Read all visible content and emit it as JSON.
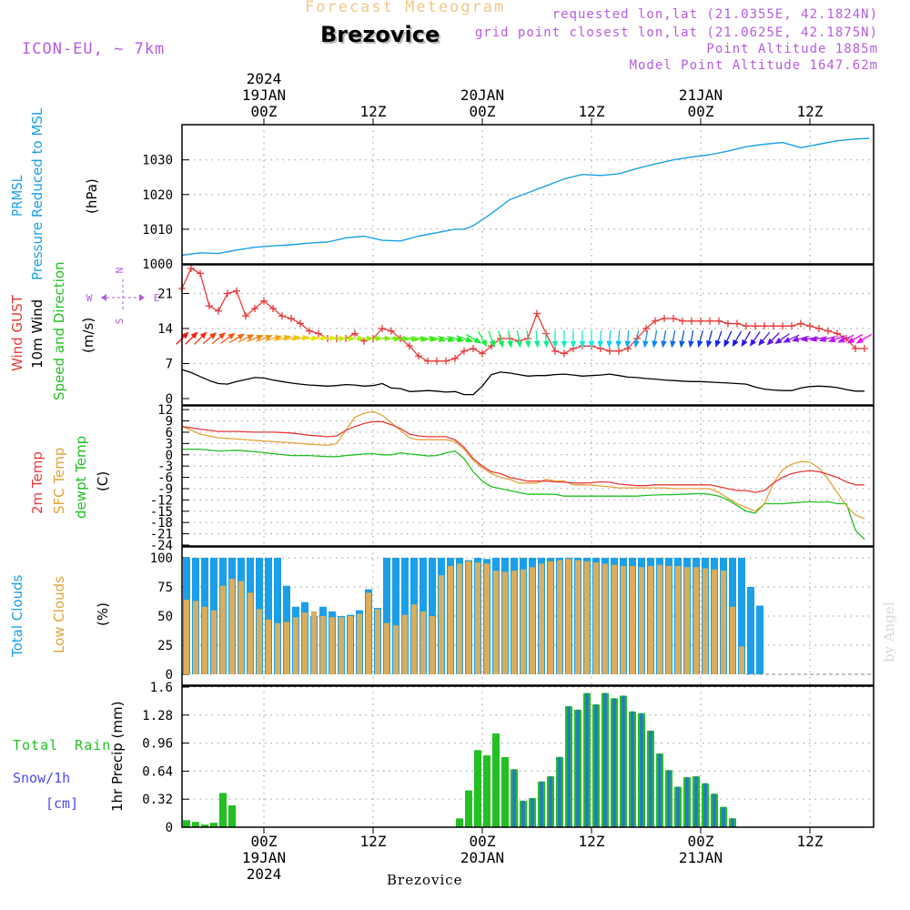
{
  "header": {
    "product": "Forecast Meteogram",
    "location": "Brezovice",
    "model": "ICON-EU, ~ 7km",
    "requested": "requested lon,lat (21.0355E, 42.1824N)",
    "gridpoint": "grid point closest lon,lat (21.0625E, 42.1875N)",
    "point_altitude": "Point Altitude 1885m",
    "model_altitude": "Model Point Altitude 1647.62m",
    "credit": "by Angel",
    "footer_location": "Brezovice"
  },
  "colors": {
    "blue": "#1a9fe8",
    "red": "#e83a3a",
    "orange": "#e0a43a",
    "green": "#22c022",
    "black": "#000000",
    "purple": "#b45ce0",
    "snow": "#4a4af0"
  },
  "chart_data": {
    "type": "meteogram",
    "x_unit": "hours since 2024-01-18 15Z",
    "time_axis": {
      "top_ticks": [
        {
          "t": 9,
          "lines": [
            "2024",
            "19JAN",
            "00Z"
          ]
        },
        {
          "t": 21,
          "lines": [
            "12Z"
          ]
        },
        {
          "t": 33,
          "lines": [
            "20JAN",
            "00Z"
          ]
        },
        {
          "t": 45,
          "lines": [
            "12Z"
          ]
        },
        {
          "t": 57,
          "lines": [
            "21JAN",
            "00Z"
          ]
        },
        {
          "t": 69,
          "lines": [
            "12Z"
          ]
        }
      ],
      "bottom_ticks": [
        {
          "t": 9,
          "lines": [
            "00Z",
            "19JAN",
            "2024"
          ]
        },
        {
          "t": 21,
          "lines": [
            "12Z"
          ]
        },
        {
          "t": 33,
          "lines": [
            "00Z",
            "20JAN"
          ]
        },
        {
          "t": 45,
          "lines": [
            "12Z"
          ]
        },
        {
          "t": 57,
          "lines": [
            "00Z",
            "21JAN"
          ]
        },
        {
          "t": 69,
          "lines": [
            "12Z"
          ]
        }
      ],
      "range": [
        0,
        76
      ]
    },
    "pressure": {
      "labels": [
        "PRMSL",
        "Pressure Reduced to MSL",
        "(hPa)"
      ],
      "ylim": [
        1000,
        1037
      ],
      "yticks": [
        1000,
        1010,
        1020,
        1030
      ],
      "t": [
        0,
        2,
        4,
        6,
        8,
        10,
        12,
        14,
        16,
        18,
        20,
        22,
        24,
        26,
        28,
        30,
        31,
        32,
        34,
        36,
        38,
        40,
        42,
        44,
        46,
        48,
        50,
        52,
        54,
        56,
        58,
        60,
        62,
        64,
        66,
        68,
        70,
        72,
        74,
        75.5
      ],
      "values": [
        1002.5,
        1003.2,
        1003,
        1004,
        1004.8,
        1005.2,
        1005.5,
        1006,
        1006.3,
        1007.5,
        1008,
        1006.8,
        1006.6,
        1008,
        1009,
        1010,
        1010,
        1011,
        1014.5,
        1018.5,
        1020.5,
        1022.5,
        1024.5,
        1025.8,
        1025.5,
        1026,
        1027.5,
        1028.8,
        1030,
        1030.8,
        1031.5,
        1032.5,
        1033.8,
        1034.5,
        1035,
        1033.5,
        1034.5,
        1035.5,
        1036,
        1036.2
      ]
    },
    "wind": {
      "labels": [
        "Wind GUST",
        "10m Wind",
        "Speed and Direction",
        "(m/s)"
      ],
      "ylim": [
        0,
        26
      ],
      "yticks": [
        0,
        7,
        14,
        21
      ],
      "compass": {
        "n": "N",
        "s": "S",
        "w": "W",
        "e": "E"
      },
      "t": [
        0,
        1,
        2,
        3,
        4,
        5,
        6,
        7,
        8,
        9,
        10,
        11,
        12,
        13,
        14,
        15,
        16,
        17,
        18,
        19,
        20,
        21,
        22,
        23,
        24,
        25,
        26,
        27,
        28,
        29,
        30,
        31,
        32,
        33,
        34,
        35,
        36,
        37,
        38,
        39,
        40,
        41,
        42,
        43,
        44,
        45,
        46,
        47,
        48,
        49,
        50,
        51,
        52,
        53,
        54,
        55,
        56,
        57,
        58,
        59,
        60,
        61,
        62,
        63,
        64,
        65,
        66,
        67,
        68,
        69,
        70,
        71,
        72,
        73,
        74,
        75
      ],
      "gust": [
        22,
        26,
        25,
        18.5,
        17.5,
        21,
        21.5,
        16.5,
        18,
        19.5,
        18,
        16.5,
        16,
        15,
        13.5,
        13,
        12,
        12,
        12,
        13,
        11.5,
        12,
        14,
        13.5,
        12,
        10.5,
        8.5,
        7.5,
        7.5,
        7.5,
        8,
        9.5,
        10,
        9,
        10.5,
        12,
        12,
        11.5,
        12,
        17,
        13,
        9.5,
        9,
        10,
        10.5,
        10.5,
        10,
        9.5,
        9.5,
        10,
        12,
        14,
        15.5,
        16,
        16,
        15.5,
        15.5,
        15.5,
        15.5,
        15.5,
        15,
        15,
        14.5,
        14.5,
        14.5,
        14.5,
        14.5,
        14.5,
        15,
        14.5,
        14,
        13.5,
        13,
        12,
        10,
        10
      ],
      "speed": [
        5.8,
        5.2,
        4.4,
        3.6,
        3,
        2.9,
        3.4,
        3.8,
        4.2,
        4.1,
        3.7,
        3.4,
        3.1,
        2.9,
        2.7,
        2.6,
        2.5,
        2.6,
        2.8,
        2.7,
        2.5,
        2.6,
        3,
        2.1,
        2,
        1.4,
        1.5,
        1.6,
        1.5,
        1.3,
        1.4,
        0.8,
        0.8,
        2.5,
        4.8,
        5.3,
        5.1,
        4.8,
        4.5,
        4.6,
        4.6,
        4.8,
        4.9,
        4.7,
        4.5,
        4.6,
        4.7,
        4.9,
        4.6,
        4.3,
        4.2,
        4,
        3.9,
        3.7,
        3.6,
        3.5,
        3.4,
        3.4,
        3.3,
        3.2,
        3.1,
        3,
        2.9,
        2.3,
        1.9,
        1.7,
        1.6,
        1.6,
        2.1,
        2.4,
        2.5,
        2.4,
        2.2,
        1.8,
        1.5,
        1.5
      ],
      "dir_deg": [
        225,
        225,
        225,
        230,
        230,
        235,
        240,
        245,
        250,
        250,
        255,
        255,
        260,
        260,
        265,
        265,
        265,
        270,
        270,
        270,
        270,
        270,
        270,
        275,
        275,
        280,
        280,
        280,
        285,
        285,
        285,
        290,
        300,
        330,
        340,
        345,
        350,
        350,
        355,
        355,
        355,
        0,
        0,
        0,
        0,
        0,
        5,
        5,
        5,
        5,
        10,
        10,
        10,
        10,
        10,
        10,
        10,
        15,
        15,
        20,
        25,
        30,
        30,
        35,
        40,
        45,
        55,
        65,
        75,
        80,
        80,
        75,
        70,
        65,
        60,
        60
      ]
    },
    "temperature": {
      "labels": [
        "2m Temp",
        "SFC Temp",
        "dewpt Temp",
        "(C)"
      ],
      "ylim": [
        -24,
        13
      ],
      "yticks": [
        12,
        9,
        6,
        3,
        0,
        -3,
        -6,
        -9,
        -12,
        -15,
        -18,
        -21,
        -24
      ],
      "t": [
        0,
        2,
        4,
        6,
        8,
        10,
        12,
        14,
        16,
        17,
        18,
        19,
        20,
        21,
        22,
        23,
        24,
        25,
        26,
        27,
        28,
        29,
        30,
        31,
        32,
        33,
        34,
        35,
        36,
        37,
        38,
        39,
        40,
        41,
        42,
        43,
        44,
        45,
        46,
        47,
        48,
        49,
        50,
        51,
        52,
        53,
        54,
        55,
        56,
        57,
        58,
        59,
        60,
        61,
        62,
        63,
        64,
        65,
        66,
        67,
        68,
        69,
        70,
        71,
        72,
        73,
        74,
        75
      ],
      "temp_2m": [
        7.5,
        6.8,
        6.2,
        6.2,
        6,
        6,
        5.8,
        5.2,
        4.8,
        5,
        6.5,
        7.5,
        8.3,
        8.8,
        8.8,
        8,
        7,
        5.5,
        5,
        4.8,
        4.8,
        4.8,
        4,
        2,
        -1,
        -3,
        -4.5,
        -5,
        -6,
        -6.5,
        -7,
        -7,
        -7,
        -7.2,
        -7.3,
        -7.5,
        -7.5,
        -7.4,
        -7.2,
        -7.3,
        -7.8,
        -8,
        -8.2,
        -8.2,
        -8,
        -8,
        -8,
        -8,
        -8,
        -8,
        -8,
        -8.5,
        -9,
        -9.5,
        -9.5,
        -10,
        -9.5,
        -7.5,
        -6,
        -5,
        -4.5,
        -4.2,
        -4.5,
        -5.2,
        -6,
        -7.2,
        -8,
        -8
      ],
      "temp_sfc": [
        7.5,
        5.5,
        4.5,
        4.2,
        3.8,
        3.5,
        3.2,
        2.8,
        2.5,
        3,
        6.5,
        10,
        11,
        11.5,
        10.5,
        8.5,
        6.5,
        4.5,
        4,
        4,
        4,
        4,
        3.5,
        1.5,
        -1.5,
        -3.5,
        -5,
        -6,
        -6.5,
        -7.5,
        -7.5,
        -7.5,
        -6.5,
        -7,
        -7,
        -8,
        -8,
        -8,
        -8.3,
        -8.5,
        -8.8,
        -8.8,
        -8.8,
        -8.8,
        -8.8,
        -8.8,
        -9,
        -9,
        -9,
        -9,
        -9,
        -10,
        -11.5,
        -13,
        -14,
        -15,
        -13,
        -7.5,
        -4,
        -2.5,
        -1.8,
        -2,
        -3.5,
        -6.5,
        -10,
        -13.5,
        -16,
        -17
      ],
      "dewpoint": [
        1.5,
        1.5,
        1,
        1.2,
        0.8,
        0.3,
        -0.2,
        -0.2,
        -0.5,
        -0.5,
        -0.2,
        0,
        0.2,
        0.3,
        0,
        0,
        0.5,
        0.2,
        0,
        -0.3,
        -0.2,
        0.5,
        1,
        -1,
        -4.5,
        -7,
        -8.5,
        -9,
        -9.5,
        -10,
        -10.5,
        -10.5,
        -10.5,
        -10.5,
        -11,
        -11,
        -11,
        -11,
        -11,
        -11,
        -11,
        -11,
        -11,
        -10.8,
        -10.7,
        -10.6,
        -10.6,
        -10.5,
        -10.4,
        -10.3,
        -10.5,
        -11,
        -12,
        -13.5,
        -15,
        -15.5,
        -13,
        -13,
        -13,
        -12.8,
        -12.6,
        -12.5,
        -12.6,
        -12.5,
        -13,
        -13,
        -20,
        -22.5
      ]
    },
    "clouds": {
      "labels": [
        "Total Clouds",
        "Low Clouds",
        "(%)"
      ],
      "ylim": [
        0,
        100
      ],
      "yticks": [
        0,
        25,
        50,
        75,
        100
      ],
      "t": [
        0,
        1,
        2,
        3,
        4,
        5,
        6,
        7,
        8,
        9,
        10,
        11,
        12,
        13,
        14,
        15,
        16,
        17,
        18,
        19,
        20,
        21,
        22,
        23,
        24,
        25,
        26,
        27,
        28,
        29,
        30,
        31,
        32,
        33,
        34,
        35,
        36,
        37,
        38,
        39,
        40,
        41,
        42,
        43,
        44,
        45,
        46,
        47,
        48,
        49,
        50,
        51,
        52,
        53,
        54,
        55,
        56,
        57,
        58,
        59,
        60,
        61,
        62,
        63,
        64,
        65,
        66,
        67,
        68,
        69,
        70,
        71,
        72,
        73,
        74,
        75
      ],
      "total": [
        100,
        100,
        100,
        100,
        100,
        100,
        100,
        100,
        100,
        100,
        100,
        76,
        58,
        62,
        50,
        58,
        54,
        50,
        51,
        55,
        73,
        57,
        100,
        100,
        100,
        100,
        100,
        100,
        100,
        100,
        100,
        98,
        100,
        99,
        100,
        100,
        100,
        100,
        100,
        100,
        100,
        100,
        100,
        100,
        100,
        100,
        100,
        100,
        100,
        100,
        100,
        100,
        100,
        100,
        100,
        100,
        100,
        100,
        100,
        100,
        100,
        100,
        75,
        59,
        0,
        0,
        0,
        0,
        0,
        0,
        0,
        0,
        0,
        0,
        0,
        0
      ],
      "low": [
        64,
        63,
        58,
        55,
        76,
        82,
        80,
        70,
        56,
        47,
        44,
        45,
        49,
        53,
        54,
        50,
        49,
        49,
        50,
        52,
        70,
        56,
        44,
        42,
        51,
        60,
        54,
        50,
        85,
        93,
        95,
        97,
        96,
        95,
        89,
        88,
        89,
        90,
        92,
        95,
        97,
        98,
        99,
        98,
        97,
        96,
        95,
        94,
        93,
        93,
        92,
        93,
        94,
        93,
        93,
        92,
        92,
        91,
        90,
        89,
        58,
        24,
        0,
        0,
        0,
        0,
        0,
        0,
        0,
        0,
        0,
        0,
        0,
        0,
        0,
        0
      ]
    },
    "precip": {
      "labels": [
        "Total Rain",
        "Snow/1h",
        "[cm]",
        "1hr Precip (mm)"
      ],
      "ylim": [
        0,
        1.6
      ],
      "yticks": [
        0,
        0.32,
        0.64,
        0.96,
        1.28,
        1.6
      ],
      "tick_labels": [
        "0",
        "0.32",
        "0.64",
        "0.96",
        "1.28",
        "1.6"
      ],
      "t": [
        0,
        1,
        2,
        3,
        4,
        5,
        6,
        7,
        8,
        9,
        10,
        11,
        12,
        13,
        14,
        15,
        16,
        17,
        18,
        19,
        20,
        21,
        22,
        23,
        24,
        25,
        26,
        27,
        28,
        29,
        30,
        31,
        32,
        33,
        34,
        35,
        36,
        37,
        38,
        39,
        40,
        41,
        42,
        43,
        44,
        45,
        46,
        47,
        48,
        49,
        50,
        51,
        52,
        53,
        54,
        55,
        56,
        57,
        58,
        59,
        60,
        61,
        62,
        63,
        64,
        65,
        66,
        67,
        68,
        69,
        70,
        71,
        72,
        73,
        74,
        75
      ],
      "rain": [
        0.08,
        0.06,
        0.03,
        0.05,
        0.39,
        0.25,
        0,
        0,
        0,
        0,
        0,
        0,
        0,
        0,
        0,
        0,
        0,
        0,
        0,
        0,
        0,
        0,
        0,
        0,
        0,
        0,
        0,
        0,
        0,
        0,
        0.1,
        0.42,
        0.88,
        0.82,
        1.07,
        0.8,
        0.66,
        0.3,
        0.33,
        0.52,
        0.58,
        0.8,
        1.38,
        1.34,
        1.53,
        1.4,
        1.53,
        1.47,
        1.5,
        1.32,
        1.3,
        1.1,
        0.84,
        0.65,
        0.46,
        0.57,
        0.58,
        0.5,
        0.38,
        0.23,
        0.1,
        0,
        0,
        0,
        0,
        0,
        0,
        0,
        0,
        0,
        0,
        0,
        0,
        0,
        0,
        0
      ],
      "snow": [
        0,
        0,
        0,
        0,
        0,
        0,
        0,
        0,
        0,
        0,
        0,
        0,
        0,
        0,
        0,
        0,
        0,
        0,
        0,
        0,
        0,
        0,
        0,
        0,
        0,
        0,
        0,
        0,
        0,
        0,
        0,
        0,
        0,
        0,
        0,
        0,
        0.66,
        0.3,
        0.33,
        0.52,
        0.58,
        0.8,
        1.38,
        1.34,
        1.53,
        1.4,
        1.53,
        1.47,
        1.5,
        1.32,
        1.3,
        1.1,
        0.84,
        0.65,
        0.46,
        0.57,
        0.58,
        0.5,
        0.38,
        0.23,
        0.1,
        0,
        0,
        0,
        0,
        0,
        0,
        0,
        0,
        0,
        0,
        0,
        0,
        0,
        0,
        0
      ]
    }
  }
}
